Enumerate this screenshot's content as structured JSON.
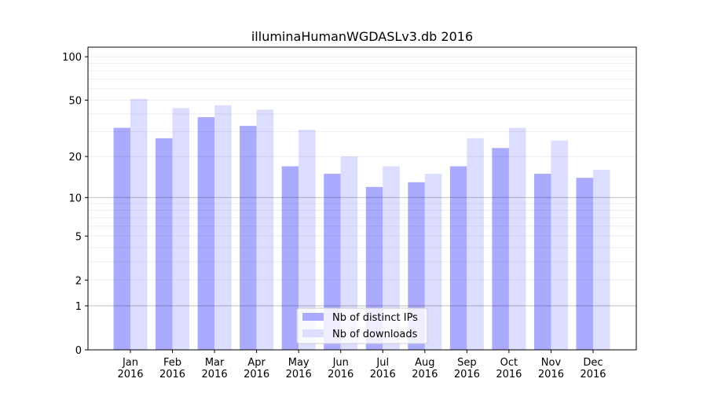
{
  "chart_data": {
    "type": "bar",
    "title": "illuminaHumanWGDASLv3.db 2016",
    "xlabel": "",
    "ylabel": "",
    "yscale": "symlog (log10(1+y))",
    "ylim": [
      0,
      120
    ],
    "yticks": [
      0,
      1,
      2,
      5,
      10,
      20,
      50,
      100
    ],
    "categories": [
      "Jan\n2016",
      "Feb\n2016",
      "Mar\n2016",
      "Apr\n2016",
      "May\n2016",
      "Jun\n2016",
      "Jul\n2016",
      "Aug\n2016",
      "Sep\n2016",
      "Oct\n2016",
      "Nov\n2016",
      "Dec\n2016"
    ],
    "series": [
      {
        "name": "Nb of distinct IPs",
        "color": "#aaaaff",
        "values": [
          32,
          27,
          38,
          33,
          17,
          15,
          12,
          13,
          17,
          23,
          15,
          14
        ]
      },
      {
        "name": "Nb of downloads",
        "color": "#ddddff",
        "values": [
          51,
          44,
          46,
          43,
          31,
          20,
          17,
          15,
          27,
          32,
          26,
          16
        ]
      }
    ],
    "grid": true,
    "legend": "bottom-center"
  }
}
